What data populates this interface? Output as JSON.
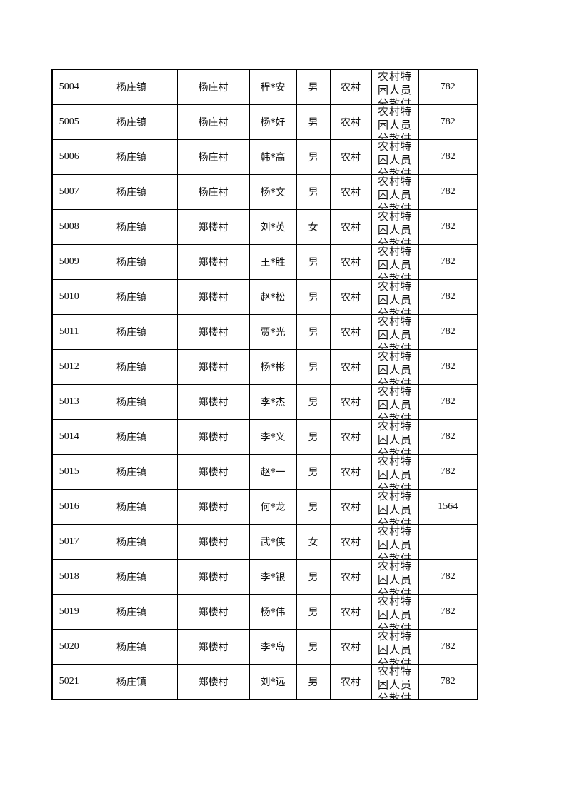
{
  "rows": [
    {
      "no": "5004",
      "town": "杨庄镇",
      "village": "杨庄村",
      "name": "程*安",
      "gender": "男",
      "area": "农村",
      "type": "农村特困人员分散供养",
      "amount": "782"
    },
    {
      "no": "5005",
      "town": "杨庄镇",
      "village": "杨庄村",
      "name": "杨*好",
      "gender": "男",
      "area": "农村",
      "type": "农村特困人员分散供养",
      "amount": "782"
    },
    {
      "no": "5006",
      "town": "杨庄镇",
      "village": "杨庄村",
      "name": "韩*高",
      "gender": "男",
      "area": "农村",
      "type": "农村特困人员分散供养",
      "amount": "782"
    },
    {
      "no": "5007",
      "town": "杨庄镇",
      "village": "杨庄村",
      "name": "杨*文",
      "gender": "男",
      "area": "农村",
      "type": "农村特困人员分散供养",
      "amount": "782"
    },
    {
      "no": "5008",
      "town": "杨庄镇",
      "village": "郑楼村",
      "name": "刘*英",
      "gender": "女",
      "area": "农村",
      "type": "农村特困人员分散供养",
      "amount": "782"
    },
    {
      "no": "5009",
      "town": "杨庄镇",
      "village": "郑楼村",
      "name": "王*胜",
      "gender": "男",
      "area": "农村",
      "type": "农村特困人员分散供养",
      "amount": "782"
    },
    {
      "no": "5010",
      "town": "杨庄镇",
      "village": "郑楼村",
      "name": "赵*松",
      "gender": "男",
      "area": "农村",
      "type": "农村特困人员分散供养",
      "amount": "782"
    },
    {
      "no": "5011",
      "town": "杨庄镇",
      "village": "郑楼村",
      "name": "贾*光",
      "gender": "男",
      "area": "农村",
      "type": "农村特困人员分散供养",
      "amount": "782"
    },
    {
      "no": "5012",
      "town": "杨庄镇",
      "village": "郑楼村",
      "name": "杨*彬",
      "gender": "男",
      "area": "农村",
      "type": "农村特困人员分散供养",
      "amount": "782"
    },
    {
      "no": "5013",
      "town": "杨庄镇",
      "village": "郑楼村",
      "name": "李*杰",
      "gender": "男",
      "area": "农村",
      "type": "农村特困人员分散供养",
      "amount": "782"
    },
    {
      "no": "5014",
      "town": "杨庄镇",
      "village": "郑楼村",
      "name": "李*义",
      "gender": "男",
      "area": "农村",
      "type": "农村特困人员分散供养",
      "amount": "782"
    },
    {
      "no": "5015",
      "town": "杨庄镇",
      "village": "郑楼村",
      "name": "赵*一",
      "gender": "男",
      "area": "农村",
      "type": "农村特困人员分散供养",
      "amount": "782"
    },
    {
      "no": "5016",
      "town": "杨庄镇",
      "village": "郑楼村",
      "name": "何*龙",
      "gender": "男",
      "area": "农村",
      "type": "农村特困人员分散供养",
      "amount": "1564"
    },
    {
      "no": "5017",
      "town": "杨庄镇",
      "village": "郑楼村",
      "name": "武*侠",
      "gender": "女",
      "area": "农村",
      "type": "农村特困人员分散供养",
      "amount": ""
    },
    {
      "no": "5018",
      "town": "杨庄镇",
      "village": "郑楼村",
      "name": "李*银",
      "gender": "男",
      "area": "农村",
      "type": "农村特困人员分散供养",
      "amount": "782"
    },
    {
      "no": "5019",
      "town": "杨庄镇",
      "village": "郑楼村",
      "name": "杨*伟",
      "gender": "男",
      "area": "农村",
      "type": "农村特困人员分散供养",
      "amount": "782"
    },
    {
      "no": "5020",
      "town": "杨庄镇",
      "village": "郑楼村",
      "name": "李*岛",
      "gender": "男",
      "area": "农村",
      "type": "农村特困人员分散供养",
      "amount": "782"
    },
    {
      "no": "5021",
      "town": "杨庄镇",
      "village": "郑楼村",
      "name": "刘*远",
      "gender": "男",
      "area": "农村",
      "type": "农村特困人员分散供养",
      "amount": "782"
    }
  ]
}
